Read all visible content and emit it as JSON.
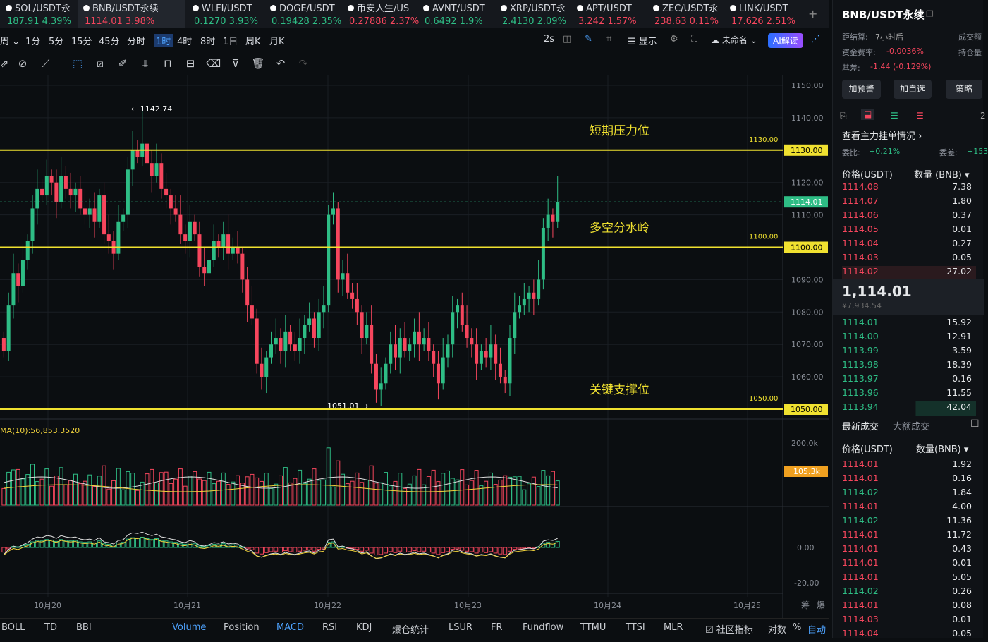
{
  "tabs": [
    {
      "name": "SOL/USDT永",
      "price": "187.91",
      "chg": "4.39%",
      "dir": "up",
      "active": false
    },
    {
      "name": "BNB/USDT永续",
      "price": "1114.01",
      "chg": "3.98%",
      "dir": "dn",
      "active": true
    },
    {
      "name": "WLFI/USDT",
      "price": "0.1270",
      "chg": "3.93%",
      "dir": "up",
      "active": false
    },
    {
      "name": "DOGE/USDT",
      "price": "0.19428",
      "chg": "2.35%",
      "dir": "up",
      "active": false
    },
    {
      "name": "币安人生/US",
      "price": "0.27886",
      "chg": "2.37%",
      "dir": "dn",
      "active": false
    },
    {
      "name": "AVNT/USDT",
      "price": "0.6492",
      "chg": "1.9%",
      "dir": "up",
      "active": false
    },
    {
      "name": "XRP/USDT永",
      "price": "2.4130",
      "chg": "2.09%",
      "dir": "up",
      "active": false
    },
    {
      "name": "APT/USDT",
      "price": "3.242",
      "chg": "1.57%",
      "dir": "dn",
      "active": false
    },
    {
      "name": "ZEC/USDT永",
      "price": "238.63",
      "chg": "0.11%",
      "dir": "dn",
      "active": false
    },
    {
      "name": "LINK/USDT",
      "price": "17.626",
      "chg": "2.51%",
      "dir": "dn",
      "active": false
    }
  ],
  "add_tab": "+",
  "intervals": [
    "周",
    "1分",
    "5分",
    "15分",
    "45分",
    "分时",
    "1时",
    "4时",
    "8时",
    "1日",
    "周K",
    "月K"
  ],
  "active_interval": "1时",
  "toolbar_right": {
    "refresh": "2s",
    "display": "显示",
    "unnamed": "未命名",
    "ai": "AI解读"
  },
  "chart": {
    "price_labels": [
      "1150.00",
      "1140.00",
      "1130.00",
      "1120.00",
      "1110.00",
      "1100.00",
      "1090.00",
      "1080.00",
      "1070.00",
      "1060.00",
      "1050.00"
    ],
    "current_price": "1114.01",
    "levels": [
      {
        "price": "1130.00",
        "label": "1130.00",
        "note": "短期压力位"
      },
      {
        "price": "1100.00",
        "label": "1100.00",
        "note": "多空分水岭"
      },
      {
        "price": "1050.00",
        "label": "1050.00",
        "note": "关键支撑位"
      }
    ],
    "high_label": "← 1142.74",
    "low_label": "1051.01 →",
    "ma_label": "MA(10):56,853.3520",
    "vol_labels": [
      "200.0k",
      "105.3k"
    ],
    "macd_labels": [
      "0.00",
      "-20.00"
    ],
    "dates": [
      "10月20",
      "10月21",
      "10月22",
      "10月23",
      "10月24",
      "10月25"
    ],
    "corner": [
      "筹",
      "爆"
    ]
  },
  "bottom_tabs": [
    "BOLL",
    "TD",
    "BBI",
    "Volume",
    "Position",
    "MACD",
    "RSI",
    "KDJ",
    "爆仓统计",
    "LSUR",
    "FR",
    "Fundflow",
    "TTMU",
    "TTSI",
    "MLR",
    "社区指标",
    "对数",
    "%",
    "自动"
  ],
  "right": {
    "title": "BNB/USDT永续",
    "settle_lbl": "距结算:",
    "settle_val": "7小时后",
    "vol_lbl": "成交额",
    "fund_lbl": "资金费率:",
    "fund_val": "-0.0036%",
    "oi_lbl": "持仓量",
    "basis_lbl": "基差:",
    "basis_val": "-1.44 (-0.129%)",
    "buttons": [
      "加预警",
      "加自选",
      "策略"
    ],
    "main_orders": "查看主力挂单情况 ›",
    "wb_lbl": "委比:",
    "wb_val": "+0.21%",
    "wc_lbl": "委差:",
    "wc_val": "+153",
    "col_price": "价格(USDT)",
    "col_qty": "数量 (BNB) ▾",
    "asks": [
      [
        "1114.08",
        "7.38"
      ],
      [
        "1114.07",
        "1.80"
      ],
      [
        "1114.06",
        "0.37"
      ],
      [
        "1114.05",
        "0.01"
      ],
      [
        "1114.04",
        "0.27"
      ],
      [
        "1114.03",
        "0.05"
      ],
      [
        "1114.02",
        "27.02"
      ]
    ],
    "last_price": "1,114.01",
    "last_cny": "¥7,934.54",
    "bids": [
      [
        "1114.01",
        "15.92"
      ],
      [
        "1114.00",
        "12.91"
      ],
      [
        "1113.99",
        "3.59"
      ],
      [
        "1113.98",
        "18.39"
      ],
      [
        "1113.97",
        "0.16"
      ],
      [
        "1113.96",
        "11.55"
      ],
      [
        "1113.94",
        "42.04"
      ]
    ],
    "trade_tab1": "最新成交",
    "trade_tab2": "大额成交",
    "col_price2": "价格(USDT)",
    "col_qty2": "数量(BNB) ▾",
    "trades": [
      [
        "1114.01",
        "1.92",
        "dn"
      ],
      [
        "1114.01",
        "0.16",
        "dn"
      ],
      [
        "1114.02",
        "1.84",
        "up"
      ],
      [
        "1114.01",
        "4.00",
        "dn"
      ],
      [
        "1114.02",
        "11.36",
        "up"
      ],
      [
        "1114.01",
        "11.72",
        "dn"
      ],
      [
        "1114.01",
        "0.43",
        "dn"
      ],
      [
        "1114.01",
        "0.01",
        "dn"
      ],
      [
        "1114.01",
        "5.05",
        "dn"
      ],
      [
        "1114.02",
        "0.26",
        "up"
      ],
      [
        "1114.01",
        "0.08",
        "dn"
      ],
      [
        "1114.03",
        "0.01",
        "dn"
      ],
      [
        "1114.04",
        "0.05",
        "dn"
      ]
    ]
  },
  "colors": {
    "up": "#2ebd85",
    "down": "#f6465d",
    "level": "#f0e130",
    "accent": "#1e88e5"
  }
}
